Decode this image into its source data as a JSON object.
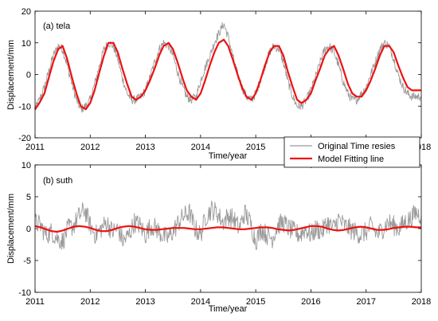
{
  "chart_data": [
    {
      "type": "line",
      "title": "(a) tela",
      "xlabel": "Time/year",
      "ylabel": "Displacement/mm",
      "xlim": [
        2011,
        2018
      ],
      "ylim": [
        -20,
        20
      ],
      "xticks": [
        2011,
        2012,
        2013,
        2014,
        2015,
        2016,
        2017,
        2018
      ],
      "yticks": [
        -20,
        -10,
        0,
        10,
        20
      ],
      "series": [
        {
          "name": "Original Time resies",
          "color": "#9a9a9a",
          "style": "noisy",
          "x": [
            2011.0,
            2011.08,
            2011.17,
            2011.25,
            2011.33,
            2011.42,
            2011.5,
            2011.58,
            2011.67,
            2011.75,
            2011.83,
            2011.92,
            2012.0,
            2012.08,
            2012.17,
            2012.25,
            2012.33,
            2012.42,
            2012.5,
            2012.58,
            2012.67,
            2012.75,
            2012.83,
            2012.92,
            2013.0,
            2013.08,
            2013.17,
            2013.25,
            2013.33,
            2013.42,
            2013.5,
            2013.58,
            2013.67,
            2013.75,
            2013.83,
            2013.92,
            2014.0,
            2014.08,
            2014.17,
            2014.25,
            2014.33,
            2014.42,
            2014.5,
            2014.58,
            2014.67,
            2014.75,
            2014.83,
            2014.92,
            2015.0,
            2015.08,
            2015.17,
            2015.25,
            2015.33,
            2015.42,
            2015.5,
            2015.58,
            2015.67,
            2015.75,
            2015.83,
            2015.92,
            2016.0,
            2016.08,
            2016.17,
            2016.25,
            2016.33,
            2016.42,
            2016.5,
            2016.58,
            2016.67,
            2016.75,
            2016.83,
            2016.92,
            2017.0,
            2017.08,
            2017.17,
            2017.25,
            2017.33,
            2017.42,
            2017.5,
            2017.58,
            2017.67,
            2017.75,
            2017.83,
            2017.92,
            2018.0
          ],
          "y": [
            -11,
            -8,
            -4,
            1,
            6,
            9,
            8,
            3,
            -3,
            -8,
            -11,
            -10,
            -8,
            -3,
            3,
            8,
            10,
            9,
            5,
            -1,
            -6,
            -8,
            -8,
            -7,
            -5,
            -1,
            4,
            8,
            10,
            9,
            6,
            1,
            -4,
            -7,
            -8,
            -7,
            -2,
            2,
            6,
            10,
            13,
            16,
            12,
            6,
            0,
            -4,
            -7,
            -8,
            -6,
            -2,
            3,
            7,
            9,
            8,
            4,
            -2,
            -7,
            -10,
            -10,
            -8,
            -5,
            -1,
            4,
            8,
            9,
            7,
            3,
            -2,
            -6,
            -8,
            -8,
            -6,
            -4,
            0,
            4,
            8,
            10,
            9,
            5,
            0,
            -4,
            -6,
            -7,
            -7,
            -7
          ]
        },
        {
          "name": "Model Fitting line",
          "color": "#ee1111",
          "style": "smooth",
          "x": [
            2011.0,
            2011.08,
            2011.17,
            2011.25,
            2011.33,
            2011.42,
            2011.5,
            2011.58,
            2011.67,
            2011.75,
            2011.83,
            2011.92,
            2012.0,
            2012.08,
            2012.17,
            2012.25,
            2012.33,
            2012.42,
            2012.5,
            2012.58,
            2012.67,
            2012.75,
            2012.83,
            2012.92,
            2013.0,
            2013.08,
            2013.17,
            2013.25,
            2013.33,
            2013.42,
            2013.5,
            2013.58,
            2013.67,
            2013.75,
            2013.83,
            2013.92,
            2014.0,
            2014.08,
            2014.17,
            2014.25,
            2014.33,
            2014.42,
            2014.5,
            2014.58,
            2014.67,
            2014.75,
            2014.83,
            2014.92,
            2015.0,
            2015.08,
            2015.17,
            2015.25,
            2015.33,
            2015.42,
            2015.5,
            2015.58,
            2015.67,
            2015.75,
            2015.83,
            2015.92,
            2016.0,
            2016.08,
            2016.17,
            2016.25,
            2016.33,
            2016.42,
            2016.5,
            2016.58,
            2016.67,
            2016.75,
            2016.83,
            2016.92,
            2017.0,
            2017.08,
            2017.17,
            2017.25,
            2017.33,
            2017.42,
            2017.5,
            2017.58,
            2017.67,
            2017.75,
            2017.83,
            2017.92,
            2018.0
          ],
          "y": [
            -11,
            -9,
            -6,
            -1,
            4,
            8,
            9,
            5,
            -1,
            -6,
            -10,
            -11,
            -9,
            -5,
            1,
            6,
            10,
            10,
            7,
            2,
            -3,
            -7,
            -8,
            -7,
            -5,
            -2,
            2,
            6,
            9,
            10,
            8,
            4,
            -1,
            -5,
            -7,
            -8,
            -6,
            -2,
            3,
            7,
            10,
            11,
            9,
            5,
            0,
            -4,
            -7,
            -8,
            -6,
            -2,
            3,
            7,
            9,
            9,
            6,
            1,
            -4,
            -8,
            -9,
            -8,
            -6,
            -2,
            2,
            6,
            8,
            9,
            6,
            2,
            -3,
            -6,
            -7,
            -7,
            -5,
            -2,
            2,
            6,
            9,
            9,
            7,
            3,
            -1,
            -4,
            -5,
            -5,
            -5
          ]
        }
      ],
      "legend": {
        "position": "bottom-right",
        "entries": [
          "Original Time resies",
          "Model Fitting line"
        ]
      }
    },
    {
      "type": "line",
      "title": "(b) suth",
      "xlabel": "Time/year",
      "ylabel": "Displacement/mm",
      "xlim": [
        2011,
        2018
      ],
      "ylim": [
        -10,
        10
      ],
      "xticks": [
        2011,
        2012,
        2013,
        2014,
        2015,
        2016,
        2017,
        2018
      ],
      "yticks": [
        -10,
        -5,
        0,
        5,
        10
      ],
      "series": [
        {
          "name": "Original Time resies",
          "color": "#9a9a9a",
          "style": "noisy",
          "x": [
            2011.0,
            2011.1,
            2011.2,
            2011.3,
            2011.4,
            2011.5,
            2011.6,
            2011.7,
            2011.8,
            2011.9,
            2012.0,
            2012.1,
            2012.2,
            2012.3,
            2012.4,
            2012.5,
            2012.6,
            2012.7,
            2012.8,
            2012.9,
            2013.0,
            2013.1,
            2013.2,
            2013.3,
            2013.4,
            2013.5,
            2013.6,
            2013.7,
            2013.8,
            2013.9,
            2014.0,
            2014.1,
            2014.2,
            2014.3,
            2014.4,
            2014.5,
            2014.6,
            2014.7,
            2014.8,
            2014.9,
            2015.0,
            2015.1,
            2015.2,
            2015.3,
            2015.4,
            2015.5,
            2015.6,
            2015.7,
            2015.8,
            2015.9,
            2016.0,
            2016.1,
            2016.2,
            2016.3,
            2016.4,
            2016.5,
            2016.6,
            2016.7,
            2016.8,
            2016.9,
            2017.0,
            2017.1,
            2017.2,
            2017.3,
            2017.4,
            2017.5,
            2017.6,
            2017.7,
            2017.8,
            2017.9,
            2018.0
          ],
          "y": [
            1,
            0.5,
            -1,
            -0.5,
            -1.5,
            -2,
            0,
            0.5,
            2,
            3,
            0.5,
            -1,
            0,
            1,
            -0.5,
            0,
            -2,
            -1,
            1,
            0.5,
            -1,
            0.5,
            0,
            -1,
            -1.5,
            -0.5,
            1,
            2,
            2.5,
            0,
            -1,
            2,
            3,
            2.5,
            1,
            2,
            1.5,
            0,
            2.5,
            1,
            -2,
            0,
            -1,
            -1.5,
            0.5,
            1,
            0,
            -0.5,
            -1,
            0,
            -1,
            0,
            -0.5,
            1,
            0,
            1.5,
            0.5,
            0,
            -0.5,
            -1,
            -0.5,
            0.5,
            -1,
            0,
            1,
            0.5,
            0,
            1,
            1.5,
            2.5,
            2
          ]
        },
        {
          "name": "Model Fitting line",
          "color": "#ee1111",
          "style": "smooth",
          "x": [
            2011.0,
            2011.1,
            2011.2,
            2011.3,
            2011.4,
            2011.5,
            2011.6,
            2011.7,
            2011.8,
            2011.9,
            2012.0,
            2012.1,
            2012.2,
            2012.3,
            2012.4,
            2012.5,
            2012.6,
            2012.7,
            2012.8,
            2012.9,
            2013.0,
            2013.1,
            2013.2,
            2013.3,
            2013.4,
            2013.5,
            2013.6,
            2013.7,
            2013.8,
            2013.9,
            2014.0,
            2014.1,
            2014.2,
            2014.3,
            2014.4,
            2014.5,
            2014.6,
            2014.7,
            2014.8,
            2014.9,
            2015.0,
            2015.1,
            2015.2,
            2015.3,
            2015.4,
            2015.5,
            2015.6,
            2015.7,
            2015.8,
            2015.9,
            2016.0,
            2016.1,
            2016.2,
            2016.3,
            2016.4,
            2016.5,
            2016.6,
            2016.7,
            2016.8,
            2016.9,
            2017.0,
            2017.1,
            2017.2,
            2017.3,
            2017.4,
            2017.5,
            2017.6,
            2017.7,
            2017.8,
            2017.9,
            2018.0
          ],
          "y": [
            0.4,
            0.2,
            -0.1,
            -0.4,
            -0.5,
            -0.3,
            0,
            0.3,
            0.4,
            0.3,
            0.1,
            -0.2,
            -0.4,
            -0.4,
            -0.2,
            0.1,
            0.3,
            0.4,
            0.3,
            0.1,
            -0.1,
            -0.2,
            -0.2,
            -0.1,
            0,
            0.1,
            0.1,
            0.1,
            0,
            -0.1,
            -0.1,
            0,
            0.1,
            0.2,
            0.2,
            0.1,
            0,
            -0.1,
            -0.1,
            0,
            0.1,
            0.2,
            0.2,
            0.1,
            -0.1,
            -0.2,
            -0.3,
            -0.2,
            0,
            0.2,
            0.4,
            0.4,
            0.3,
            0,
            -0.2,
            -0.3,
            -0.2,
            0,
            0.2,
            0.3,
            0.2,
            0,
            -0.2,
            -0.2,
            -0.1,
            0.1,
            0.2,
            0.3,
            0.3,
            0.2,
            0.2
          ]
        }
      ]
    }
  ]
}
